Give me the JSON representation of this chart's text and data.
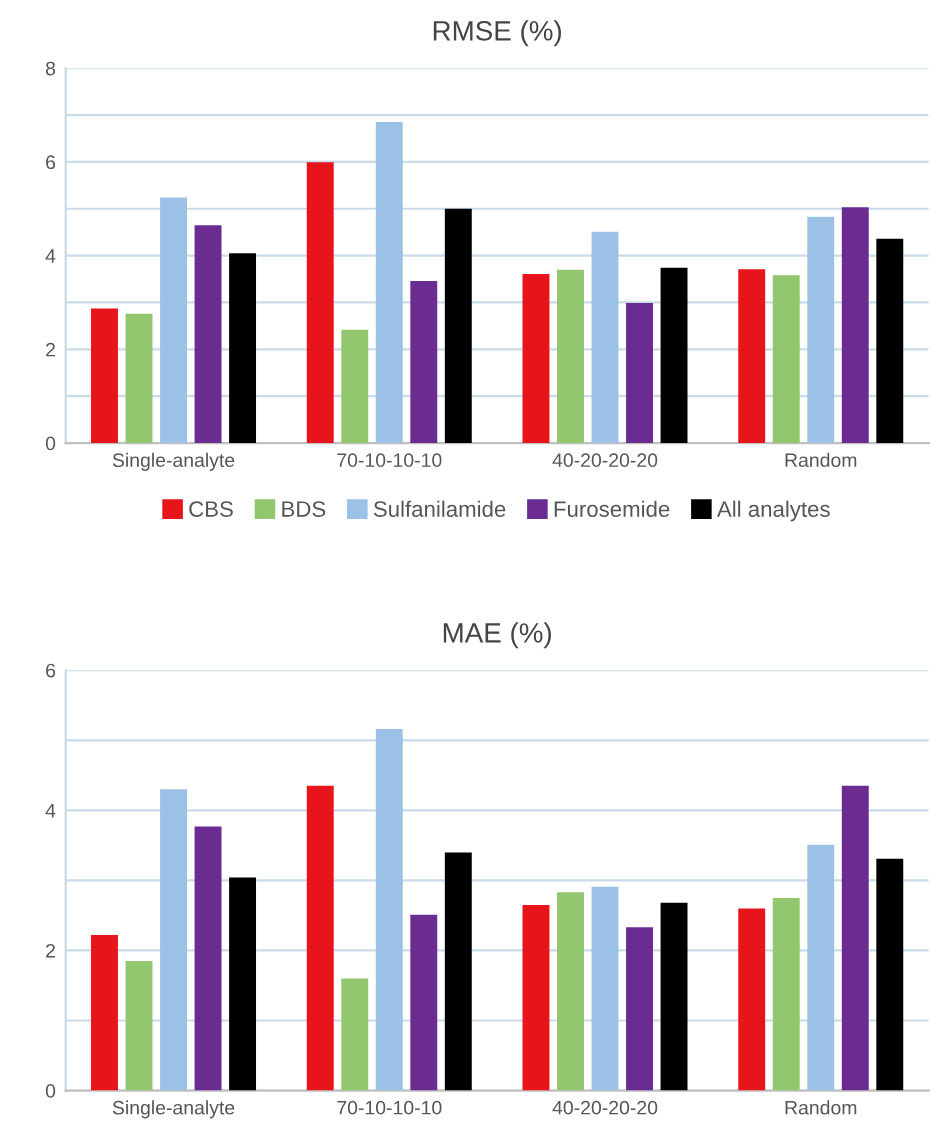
{
  "chart_data": [
    {
      "type": "bar",
      "title": "RMSE (%)",
      "categories": [
        "Single-analyte",
        "70-10-10-10",
        "40-20-20-20",
        "Random"
      ],
      "series": [
        {
          "name": "CBS",
          "color": "#e8141c",
          "values": [
            2.87,
            5.99,
            3.61,
            3.71
          ]
        },
        {
          "name": "BDS",
          "color": "#92c66f",
          "values": [
            2.76,
            2.42,
            3.7,
            3.58
          ]
        },
        {
          "name": "Sulfanilamide",
          "color": "#9bc2e6",
          "values": [
            5.24,
            6.85,
            4.51,
            4.83
          ]
        },
        {
          "name": "Furosemide",
          "color": "#6a2c91",
          "values": [
            4.65,
            3.46,
            2.99,
            5.03
          ]
        },
        {
          "name": "All analytes",
          "color": "#000000",
          "values": [
            4.05,
            5.0,
            3.74,
            4.36
          ]
        }
      ],
      "ylim": [
        0,
        8
      ],
      "yticks": [
        0,
        {
          "value": 1,
          "label": null
        },
        2,
        {
          "value": 3,
          "label": null
        },
        4,
        {
          "value": 5,
          "label": null
        },
        6,
        {
          "value": 7,
          "label": null
        },
        8
      ],
      "grid": "y",
      "legend": "bottom"
    },
    {
      "type": "bar",
      "title": "MAE (%)",
      "categories": [
        "Single-analyte",
        "70-10-10-10",
        "40-20-20-20",
        "Random"
      ],
      "series": [
        {
          "color": "#e8141c",
          "values": [
            2.22,
            4.35,
            2.65,
            2.6
          ]
        },
        {
          "color": "#92c66f",
          "values": [
            1.85,
            1.6,
            2.83,
            2.75
          ]
        },
        {
          "color": "#9bc2e6",
          "values": [
            4.3,
            5.16,
            2.91,
            3.51
          ]
        },
        {
          "color": "#6a2c91",
          "values": [
            3.77,
            2.51,
            2.33,
            4.35
          ]
        },
        {
          "color": "#000000",
          "values": [
            3.04,
            3.4,
            2.68,
            3.31
          ]
        }
      ],
      "ylim": [
        0,
        6
      ],
      "yticks": [
        0,
        {
          "value": 1,
          "label": null
        },
        2,
        {
          "value": 3,
          "label": null
        },
        4,
        {
          "value": 5,
          "label": null
        },
        6
      ],
      "grid": "y"
    }
  ]
}
